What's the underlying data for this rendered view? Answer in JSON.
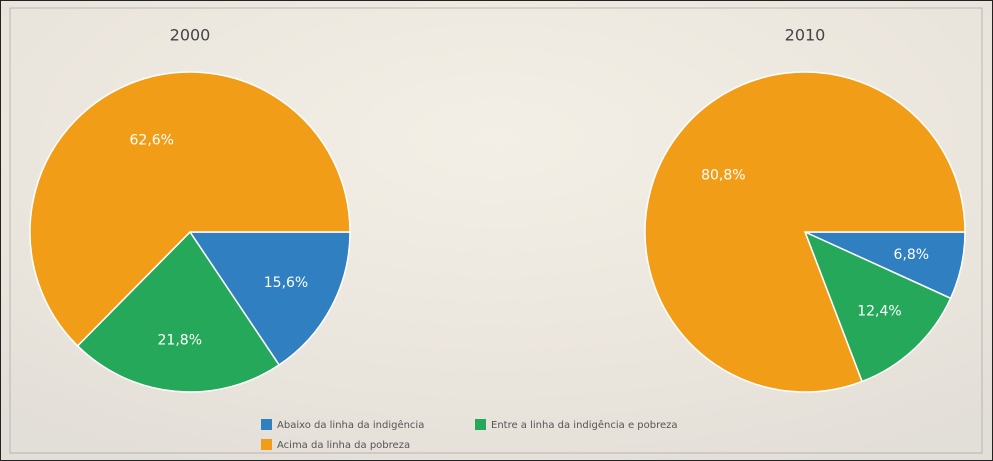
{
  "chart_data": [
    {
      "type": "pie",
      "title": "2000",
      "values": [
        15.6,
        21.8,
        62.6
      ],
      "value_labels": [
        "15,6%",
        "21,8%",
        "62,6%"
      ]
    },
    {
      "type": "pie",
      "title": "2010",
      "values": [
        6.8,
        12.4,
        80.8
      ],
      "value_labels": [
        "6,8%",
        "12,4%",
        "80,8%"
      ]
    }
  ],
  "legend": {
    "labels": [
      "Abaixo da linha da indigência",
      "Entre a linha da indigência e pobreza",
      "Acima da linha da pobreza"
    ],
    "colors": [
      "#2f7fc1",
      "#25a85a",
      "#f29d17"
    ]
  }
}
